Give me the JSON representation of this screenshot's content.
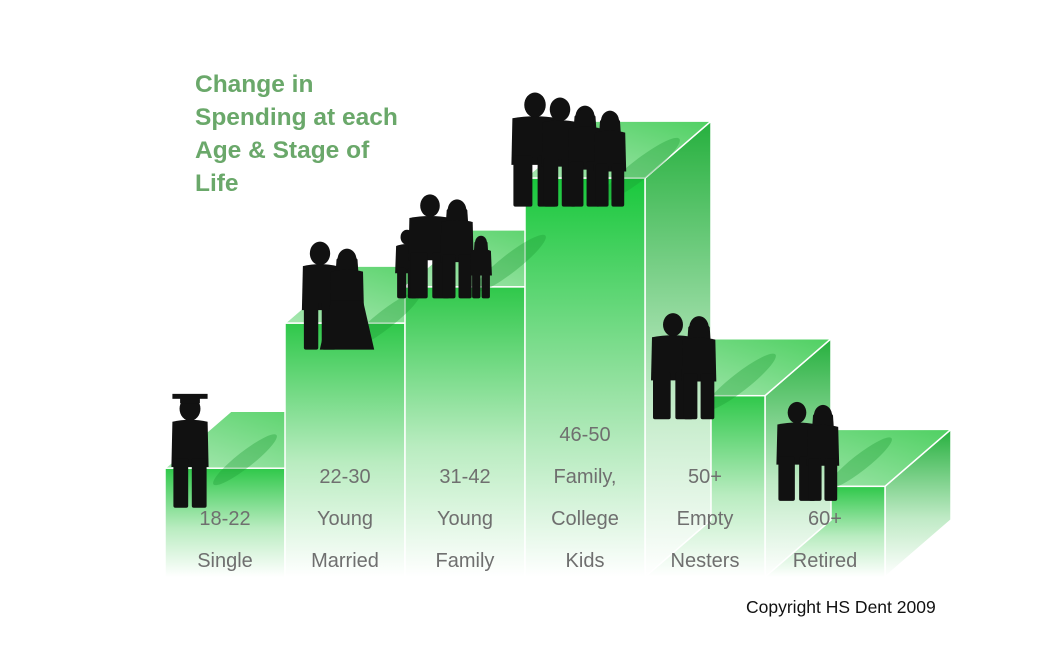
{
  "title_lines": [
    "Change in",
    "Spending at each",
    "Age & Stage of",
    "Life"
  ],
  "copyright": "Copyright HS Dent 2009",
  "colors": {
    "accent": "#2fc84a",
    "title": "#6aa86a",
    "label": "#6f6f6f"
  },
  "chart_data": {
    "type": "bar",
    "categories": [
      "18-22 Single",
      "22-30 Young Married",
      "31-42 Young Family",
      "46-50 Family, College Kids",
      "50+ Empty Nesters",
      "60+ Retired"
    ],
    "values": [
      3,
      7,
      8,
      11,
      5,
      2.5
    ],
    "ylim": [
      0,
      11.5
    ],
    "grid": false,
    "bars": [
      {
        "label_lines": [
          "18-22",
          "Single"
        ],
        "icon": "graduate-silhouette-icon",
        "value": 3
      },
      {
        "label_lines": [
          "22-30",
          "Young",
          "Married"
        ],
        "icon": "bride-groom-silhouette-icon",
        "value": 7
      },
      {
        "label_lines": [
          "31-42",
          "Young",
          "Family"
        ],
        "icon": "young-family-silhouette-icon",
        "value": 8
      },
      {
        "label_lines": [
          "46-50",
          "Family,",
          "College",
          "Kids"
        ],
        "icon": "family-teens-silhouette-icon",
        "value": 11
      },
      {
        "label_lines": [
          "50+",
          "Empty",
          "Nesters"
        ],
        "icon": "couple-silhouette-icon",
        "value": 5
      },
      {
        "label_lines": [
          "60+",
          "Retired"
        ],
        "icon": "elderly-couple-silhouette-icon",
        "value": 2.5
      }
    ]
  }
}
